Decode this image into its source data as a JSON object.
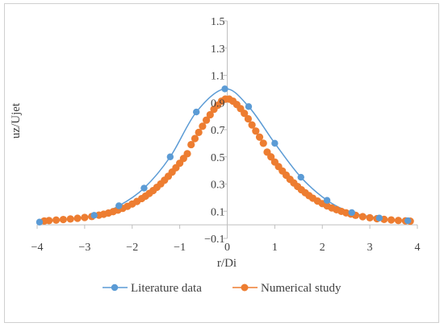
{
  "chart_data": {
    "type": "scatter",
    "title": "",
    "xlabel": "r/Di",
    "ylabel": "uz/Ujet",
    "xlim": [
      -4,
      4
    ],
    "ylim": [
      -0.1,
      1.5
    ],
    "x_ticks": [
      -4,
      -3,
      -2,
      -1,
      0,
      1,
      2,
      3,
      4
    ],
    "y_ticks": [
      -0.1,
      0.1,
      0.3,
      0.5,
      0.7,
      0.9,
      1.1,
      1.3,
      1.5
    ],
    "x_tick_labels": [
      "−4",
      "−3",
      "−2",
      "−1",
      "0",
      "1",
      "2",
      "3",
      "4"
    ],
    "y_tick_labels": [
      "−0.1",
      "0.1",
      "0.3",
      "0.5",
      "0.7",
      "0.9",
      "1.1",
      "1.3",
      "1.5"
    ],
    "grid": false,
    "legend_position": "bottom",
    "series": [
      {
        "name": "Literature data",
        "color": "#5b9bd5",
        "style": "line-markers",
        "x": [
          -3.95,
          -2.8,
          -2.28,
          -1.75,
          -1.2,
          -0.65,
          -0.05,
          0.45,
          1.0,
          1.55,
          2.1,
          2.62,
          3.2,
          3.8
        ],
        "y": [
          0.02,
          0.07,
          0.14,
          0.27,
          0.5,
          0.83,
          1.0,
          0.87,
          0.6,
          0.35,
          0.18,
          0.09,
          0.05,
          0.03
        ]
      },
      {
        "name": "Numerical study",
        "color": "#ed7d31",
        "style": "dense-markers",
        "x": [
          -3.85,
          -3.75,
          -3.6,
          -3.45,
          -3.3,
          -3.15,
          -3.0,
          -2.85,
          -2.7,
          -2.6,
          -2.5,
          -2.4,
          -2.3,
          -2.2,
          -2.1,
          -2.0,
          -1.9,
          -1.8,
          -1.72,
          -1.64,
          -1.56,
          -1.48,
          -1.4,
          -1.32,
          -1.24,
          -1.16,
          -1.08,
          -1.0,
          -0.92,
          -0.84,
          -0.76,
          -0.68,
          -0.6,
          -0.52,
          -0.44,
          -0.36,
          -0.28,
          -0.2,
          -0.12,
          -0.04,
          0.04,
          0.12,
          0.2,
          0.28,
          0.36,
          0.44,
          0.52,
          0.6,
          0.68,
          0.76,
          0.84,
          0.92,
          1.0,
          1.08,
          1.16,
          1.24,
          1.32,
          1.4,
          1.48,
          1.56,
          1.64,
          1.72,
          1.8,
          1.9,
          2.0,
          2.1,
          2.2,
          2.3,
          2.4,
          2.5,
          2.6,
          2.7,
          2.85,
          3.0,
          3.15,
          3.3,
          3.45,
          3.6,
          3.75,
          3.85
        ],
        "y": [
          0.028,
          0.031,
          0.035,
          0.039,
          0.043,
          0.048,
          0.054,
          0.061,
          0.071,
          0.078,
          0.087,
          0.097,
          0.108,
          0.121,
          0.136,
          0.153,
          0.172,
          0.193,
          0.211,
          0.231,
          0.252,
          0.276,
          0.301,
          0.328,
          0.357,
          0.388,
          0.42,
          0.453,
          0.488,
          0.523,
          0.59,
          0.635,
          0.68,
          0.725,
          0.77,
          0.81,
          0.85,
          0.88,
          0.91,
          0.925,
          0.925,
          0.91,
          0.885,
          0.855,
          0.82,
          0.78,
          0.735,
          0.69,
          0.645,
          0.6,
          0.535,
          0.5,
          0.462,
          0.428,
          0.396,
          0.365,
          0.335,
          0.308,
          0.282,
          0.258,
          0.236,
          0.215,
          0.196,
          0.175,
          0.156,
          0.139,
          0.124,
          0.111,
          0.099,
          0.088,
          0.079,
          0.07,
          0.06,
          0.052,
          0.045,
          0.04,
          0.036,
          0.032,
          0.029,
          0.027
        ]
      }
    ]
  }
}
